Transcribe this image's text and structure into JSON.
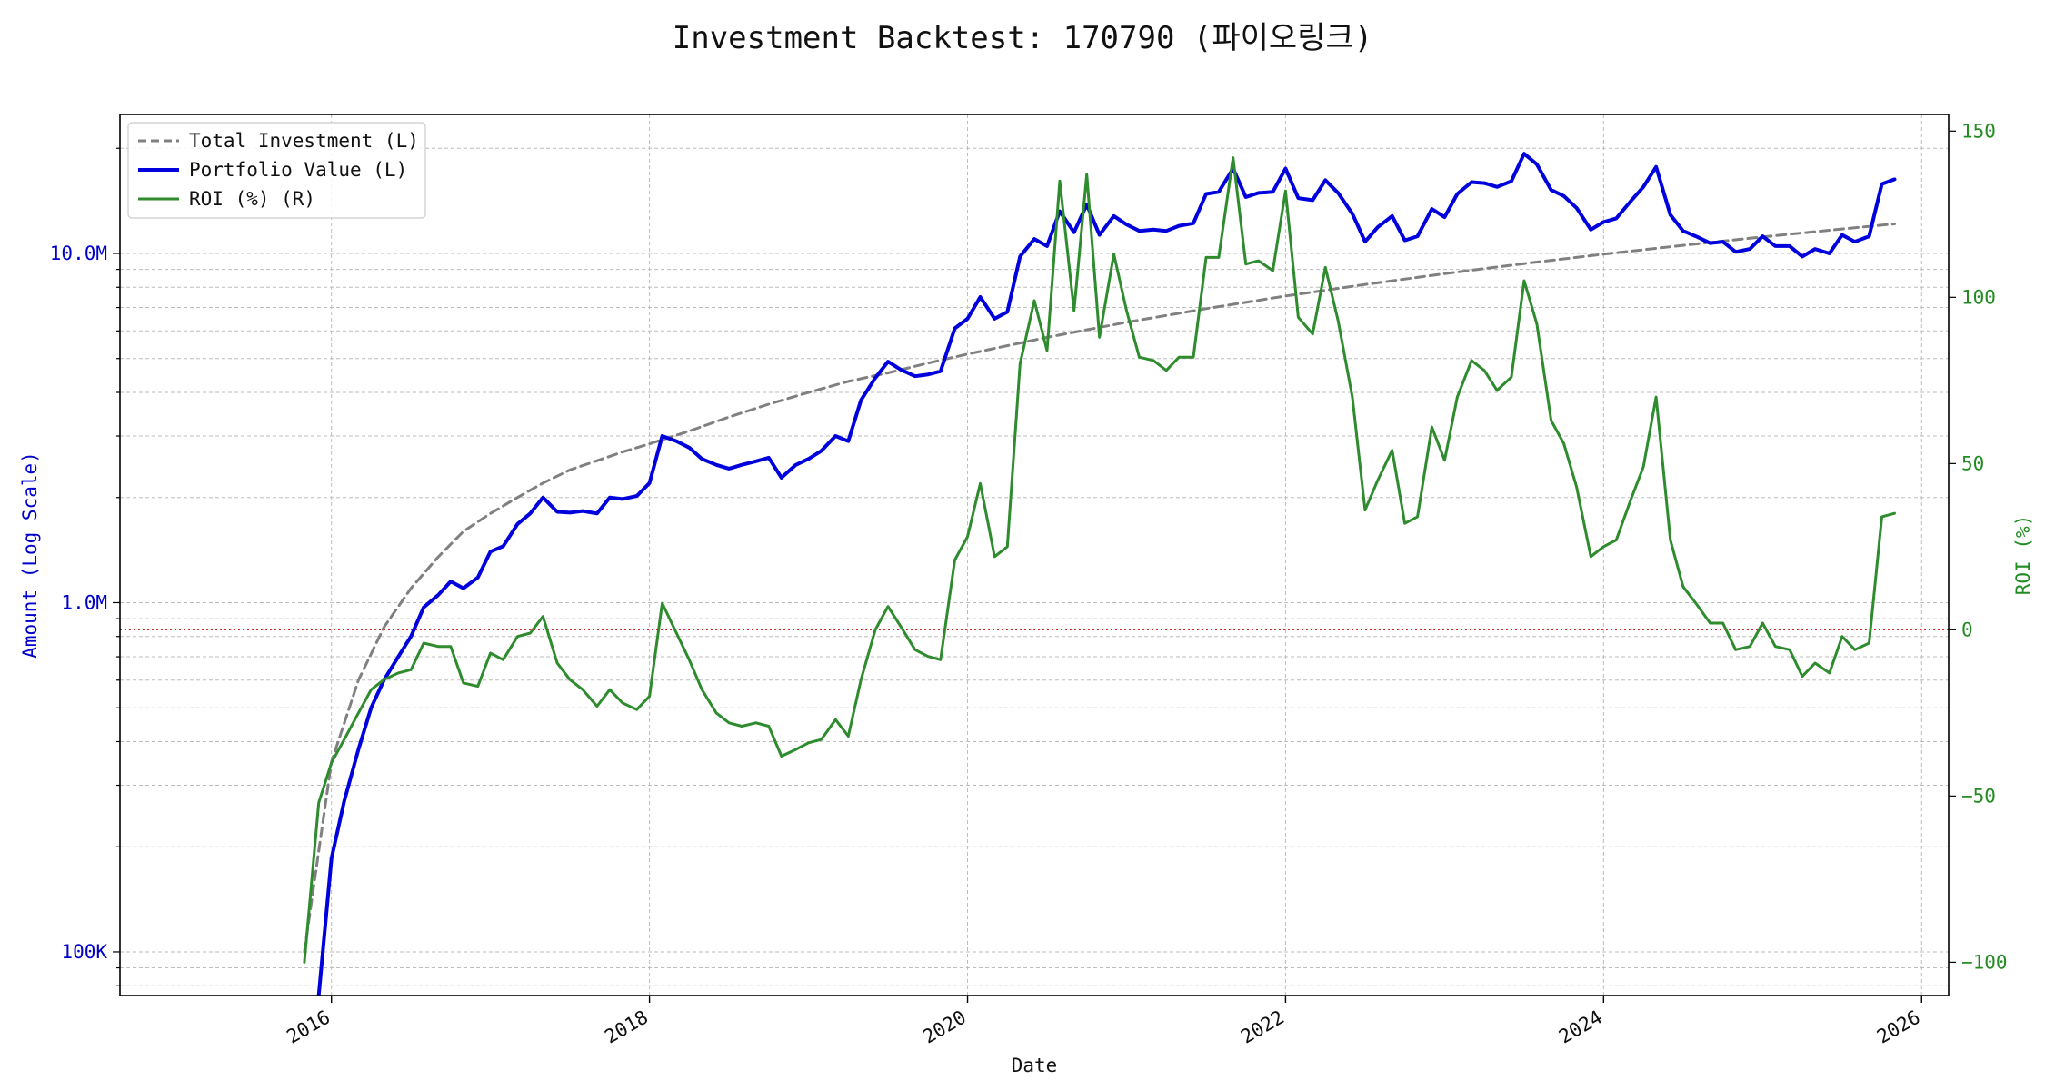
{
  "chart_data": {
    "type": "line",
    "title": "Investment Backtest: 170790 (파이오링크)",
    "xlabel": "Date",
    "ylabel_left": "Amount (Log Scale)",
    "ylabel_right": "ROI (%)",
    "y_left_scale": "log",
    "y_left_range": [
      75000,
      25000000
    ],
    "y_right_range": [
      -110,
      155
    ],
    "x_range": [
      2014.67,
      2026.17
    ],
    "x_ticks": [
      "2016",
      "2018",
      "2020",
      "2022",
      "2024",
      "2026"
    ],
    "y_left_ticks": [
      {
        "value": 100000,
        "label": "100K"
      },
      {
        "value": 1000000,
        "label": "1.0M"
      },
      {
        "value": 10000000,
        "label": "10.0M"
      }
    ],
    "y_right_ticks": [
      {
        "value": -100,
        "label": "−100"
      },
      {
        "value": -50,
        "label": "−50"
      },
      {
        "value": 0,
        "label": "0"
      },
      {
        "value": 50,
        "label": "50"
      },
      {
        "value": 100,
        "label": "100"
      },
      {
        "value": 150,
        "label": "150"
      }
    ],
    "grid": true,
    "legend_position": "top-left",
    "reference_line": {
      "axis": "right",
      "value": 0,
      "color": "#d62728",
      "style": "dotted"
    },
    "colors": {
      "total_investment": "#808080",
      "portfolio_value": "#0000dd",
      "roi": "#2e8b2e",
      "left_axis": "#0000cc",
      "right_axis": "#228b22"
    },
    "series": [
      {
        "name": "Total Investment (L)",
        "axis": "left",
        "style": "dashed",
        "x": [
          2015.83,
          2016.0,
          2016.17,
          2016.33,
          2016.5,
          2016.67,
          2016.83,
          2017.0,
          2017.17,
          2017.33,
          2017.5,
          2017.67,
          2017.83,
          2018.0,
          2018.25,
          2018.5,
          2018.75,
          2019.0,
          2019.25,
          2019.5,
          2019.75,
          2020.0,
          2020.5,
          2021.0,
          2021.5,
          2022.0,
          2022.5,
          2023.0,
          2023.5,
          2024.0,
          2024.5,
          2025.0,
          2025.5,
          2025.83
        ],
        "values": [
          100000,
          350000,
          600000,
          850000,
          1100000,
          1350000,
          1600000,
          1800000,
          2000000,
          2200000,
          2400000,
          2550000,
          2700000,
          2850000,
          3100000,
          3400000,
          3700000,
          4000000,
          4300000,
          4550000,
          4850000,
          5150000,
          5750000,
          6350000,
          6950000,
          7550000,
          8150000,
          8750000,
          9350000,
          9950000,
          10550000,
          11150000,
          11750000,
          12150000
        ]
      },
      {
        "name": "Portfolio Value (L)",
        "axis": "left",
        "style": "solid",
        "x": [
          2015.92,
          2016.0,
          2016.08,
          2016.17,
          2016.25,
          2016.33,
          2016.42,
          2016.5,
          2016.58,
          2016.67,
          2016.75,
          2016.83,
          2016.92,
          2017.0,
          2017.08,
          2017.17,
          2017.25,
          2017.33,
          2017.42,
          2017.5,
          2017.58,
          2017.67,
          2017.75,
          2017.83,
          2017.92,
          2018.0,
          2018.08,
          2018.17,
          2018.25,
          2018.33,
          2018.42,
          2018.5,
          2018.58,
          2018.67,
          2018.75,
          2018.83,
          2018.92,
          2019.0,
          2019.08,
          2019.17,
          2019.25,
          2019.33,
          2019.42,
          2019.5,
          2019.58,
          2019.67,
          2019.75,
          2019.83,
          2019.92,
          2020.0,
          2020.08,
          2020.17,
          2020.25,
          2020.33,
          2020.42,
          2020.5,
          2020.58,
          2020.67,
          2020.75,
          2020.83,
          2020.92,
          2021.0,
          2021.08,
          2021.17,
          2021.25,
          2021.33,
          2021.42,
          2021.5,
          2021.58,
          2021.67,
          2021.75,
          2021.83,
          2021.92,
          2022.0,
          2022.08,
          2022.17,
          2022.25,
          2022.33,
          2022.42,
          2022.5,
          2022.58,
          2022.67,
          2022.75,
          2022.83,
          2022.92,
          2023.0,
          2023.08,
          2023.17,
          2023.25,
          2023.33,
          2023.42,
          2023.5,
          2023.58,
          2023.67,
          2023.75,
          2023.83,
          2023.92,
          2024.0,
          2024.08,
          2024.17,
          2024.25,
          2024.33,
          2024.42,
          2024.5,
          2024.58,
          2024.67,
          2024.75,
          2024.83,
          2024.92,
          2025.0,
          2025.08,
          2025.17,
          2025.25,
          2025.33,
          2025.42,
          2025.5,
          2025.58,
          2025.67,
          2025.75,
          2025.83
        ],
        "values": [
          75000,
          185000,
          270000,
          380000,
          500000,
          600000,
          700000,
          800000,
          970000,
          1050000,
          1150000,
          1100000,
          1180000,
          1400000,
          1450000,
          1680000,
          1800000,
          2000000,
          1820000,
          1810000,
          1830000,
          1800000,
          2000000,
          1980000,
          2020000,
          2200000,
          3000000,
          2900000,
          2780000,
          2580000,
          2480000,
          2420000,
          2480000,
          2540000,
          2600000,
          2280000,
          2480000,
          2580000,
          2720000,
          3000000,
          2900000,
          3800000,
          4400000,
          4900000,
          4650000,
          4450000,
          4500000,
          4600000,
          6100000,
          6500000,
          7500000,
          6500000,
          6800000,
          9800000,
          11000000,
          10500000,
          13200000,
          11500000,
          13800000,
          11300000,
          12800000,
          12100000,
          11600000,
          11700000,
          11600000,
          12000000,
          12200000,
          14800000,
          15000000,
          17500000,
          14500000,
          14900000,
          15000000,
          17500000,
          14400000,
          14200000,
          16200000,
          14900000,
          13000000,
          10800000,
          11900000,
          12800000,
          10900000,
          11200000,
          13400000,
          12700000,
          14800000,
          16000000,
          15900000,
          15500000,
          16100000,
          19300000,
          18000000,
          15200000,
          14600000,
          13500000,
          11700000,
          12300000,
          12600000,
          14100000,
          15500000,
          17700000,
          12900000,
          11600000,
          11200000,
          10700000,
          10800000,
          10100000,
          10300000,
          11200000,
          10500000,
          10500000,
          9800000,
          10300000,
          10000000,
          11300000,
          10800000,
          11200000,
          15800000,
          16300000
        ]
      },
      {
        "name": "ROI (%) (R)",
        "axis": "right",
        "style": "solid",
        "x": [
          2015.83,
          2015.92,
          2016.0,
          2016.08,
          2016.17,
          2016.25,
          2016.33,
          2016.42,
          2016.5,
          2016.58,
          2016.67,
          2016.75,
          2016.83,
          2016.92,
          2017.0,
          2017.08,
          2017.17,
          2017.25,
          2017.33,
          2017.42,
          2017.5,
          2017.58,
          2017.67,
          2017.75,
          2017.83,
          2017.92,
          2018.0,
          2018.08,
          2018.17,
          2018.25,
          2018.33,
          2018.42,
          2018.5,
          2018.58,
          2018.67,
          2018.75,
          2018.83,
          2018.92,
          2019.0,
          2019.08,
          2019.17,
          2019.25,
          2019.33,
          2019.42,
          2019.5,
          2019.58,
          2019.67,
          2019.75,
          2019.83,
          2019.92,
          2020.0,
          2020.08,
          2020.17,
          2020.25,
          2020.33,
          2020.42,
          2020.5,
          2020.58,
          2020.67,
          2020.75,
          2020.83,
          2020.92,
          2021.0,
          2021.08,
          2021.17,
          2021.25,
          2021.33,
          2021.42,
          2021.5,
          2021.58,
          2021.67,
          2021.75,
          2021.83,
          2021.92,
          2022.0,
          2022.08,
          2022.17,
          2022.25,
          2022.33,
          2022.42,
          2022.5,
          2022.58,
          2022.67,
          2022.75,
          2022.83,
          2022.92,
          2023.0,
          2023.08,
          2023.17,
          2023.25,
          2023.33,
          2023.42,
          2023.5,
          2023.58,
          2023.67,
          2023.75,
          2023.83,
          2023.92,
          2024.0,
          2024.08,
          2024.17,
          2024.25,
          2024.33,
          2024.42,
          2024.5,
          2024.58,
          2024.67,
          2024.75,
          2024.83,
          2024.92,
          2025.0,
          2025.08,
          2025.17,
          2025.25,
          2025.33,
          2025.42,
          2025.5,
          2025.58,
          2025.67,
          2025.75,
          2025.83
        ],
        "values": [
          -100,
          -52,
          -40,
          -33,
          -25,
          -18,
          -15,
          -13,
          -12,
          -4,
          -5,
          -5,
          -16,
          -17,
          -7,
          -9,
          -2,
          -1,
          4,
          -10,
          -15,
          -18,
          -23,
          -18,
          -22,
          -24,
          -20,
          8,
          -1,
          -9,
          -18,
          -25,
          -28,
          -29,
          -28,
          -29,
          -38,
          -36,
          -34,
          -33,
          -27,
          -32,
          -15,
          0,
          7,
          1,
          -6,
          -8,
          -9,
          21,
          28,
          44,
          22,
          25,
          80,
          99,
          84,
          135,
          96,
          137,
          88,
          113,
          96,
          82,
          81,
          78,
          82,
          82,
          112,
          112,
          142,
          110,
          111,
          108,
          132,
          94,
          89,
          109,
          93,
          70,
          36,
          45,
          54,
          32,
          34,
          61,
          51,
          70,
          81,
          78,
          72,
          76,
          105,
          92,
          63,
          56,
          43,
          22,
          25,
          27,
          39,
          49,
          70,
          27,
          13,
          8,
          2,
          2,
          -6,
          -5,
          2,
          -5,
          -6,
          -14,
          -10,
          -13,
          -2,
          -6,
          -4,
          34,
          35
        ]
      }
    ]
  }
}
